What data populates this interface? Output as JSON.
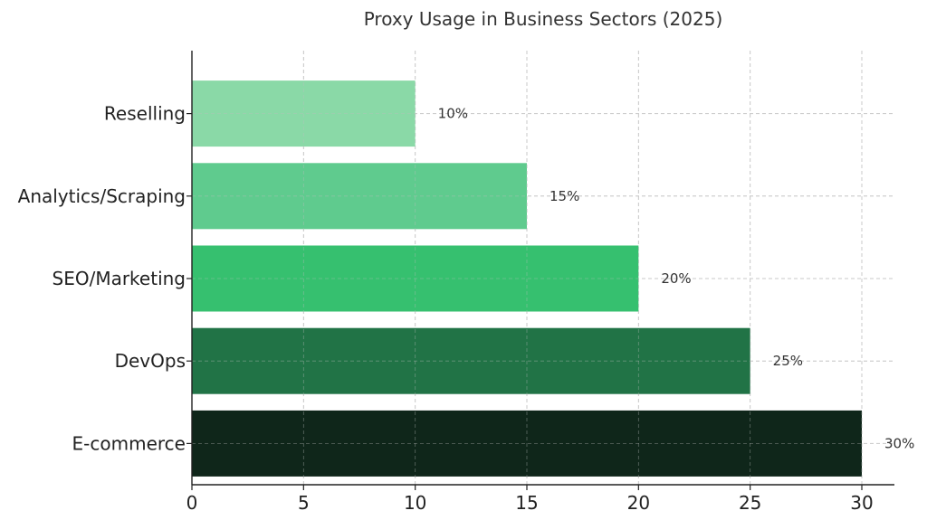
{
  "chart_data": {
    "type": "bar",
    "orientation": "horizontal",
    "title": "Proxy Usage in Business Sectors (2025)",
    "xlabel": "",
    "ylabel": "",
    "categories": [
      "E-commerce",
      "DevOps",
      "SEO/Marketing",
      "Analytics/Scraping",
      "Reselling"
    ],
    "values": [
      30,
      25,
      20,
      15,
      10
    ],
    "data_labels": [
      "30%",
      "25%",
      "20%",
      "15%",
      "10%"
    ],
    "bar_colors": [
      "#0f261a",
      "#217346",
      "#36c06f",
      "#5fcb8e",
      "#8ad9a7"
    ],
    "xlim": [
      0,
      30
    ],
    "x_ticks": [
      0,
      5,
      10,
      15,
      20,
      25,
      30
    ],
    "grid": true,
    "grid_color": "#d0d0d0",
    "axis_color": "#222222"
  }
}
